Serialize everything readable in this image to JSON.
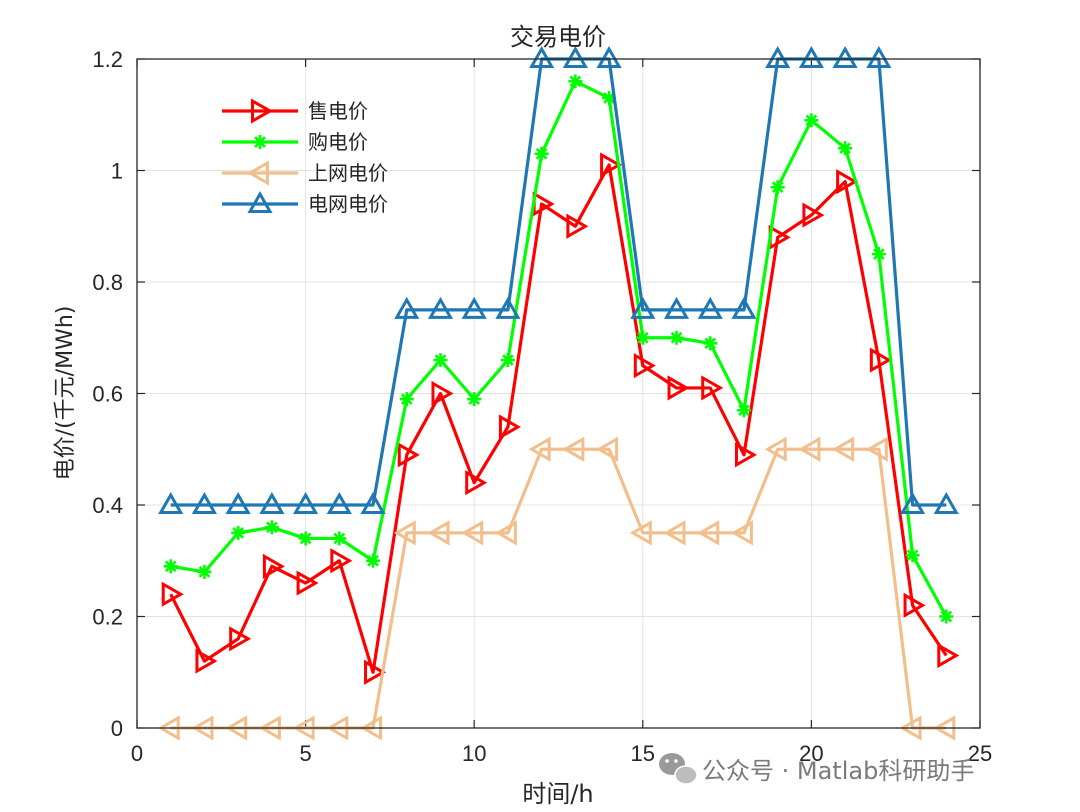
{
  "chart_data": {
    "type": "line",
    "title": "交易电价",
    "xlabel": "时间/h",
    "ylabel": "电价/(千元/MWh)",
    "xlim": [
      0,
      25
    ],
    "ylim": [
      0,
      1.2
    ],
    "xticks": [
      0,
      5,
      10,
      15,
      20,
      25
    ],
    "yticks": [
      0,
      0.2,
      0.4,
      0.6,
      0.8,
      1,
      1.2
    ],
    "xtick_labels": [
      "0",
      "5",
      "10",
      "15",
      "20",
      "25"
    ],
    "ytick_labels": [
      "0",
      "0.2",
      "0.4",
      "0.6",
      "0.8",
      "1",
      "1.2"
    ],
    "grid": true,
    "legend_position": "top-left",
    "x": [
      1,
      2,
      3,
      4,
      5,
      6,
      7,
      8,
      9,
      10,
      11,
      12,
      13,
      14,
      15,
      16,
      17,
      18,
      19,
      20,
      21,
      22,
      23,
      24
    ],
    "series": [
      {
        "name": "售电价",
        "color": "#ff0000",
        "marker": "triangle-right",
        "values": [
          0.24,
          0.12,
          0.16,
          0.29,
          0.26,
          0.3,
          0.1,
          0.49,
          0.6,
          0.44,
          0.54,
          0.94,
          0.9,
          1.01,
          0.65,
          0.61,
          0.61,
          0.49,
          0.88,
          0.92,
          0.98,
          0.66,
          0.22,
          0.13
        ]
      },
      {
        "name": "购电价",
        "color": "#00ff00",
        "marker": "asterisk",
        "values": [
          0.29,
          0.28,
          0.35,
          0.36,
          0.34,
          0.34,
          0.3,
          0.59,
          0.66,
          0.59,
          0.66,
          1.03,
          1.16,
          1.13,
          0.7,
          0.7,
          0.69,
          0.57,
          0.97,
          1.09,
          1.04,
          0.85,
          0.31,
          0.2
        ]
      },
      {
        "name": "上网电价",
        "color": "#f2bf8c",
        "marker": "triangle-left",
        "values": [
          0,
          0,
          0,
          0,
          0,
          0,
          0,
          0.35,
          0.35,
          0.35,
          0.35,
          0.5,
          0.5,
          0.5,
          0.35,
          0.35,
          0.35,
          0.35,
          0.5,
          0.5,
          0.5,
          0.5,
          0,
          0
        ]
      },
      {
        "name": "电网电价",
        "color": "#1f77b4",
        "marker": "triangle-up",
        "values": [
          0.4,
          0.4,
          0.4,
          0.4,
          0.4,
          0.4,
          0.4,
          0.75,
          0.75,
          0.75,
          0.75,
          1.2,
          1.2,
          1.2,
          0.75,
          0.75,
          0.75,
          0.75,
          1.2,
          1.2,
          1.2,
          1.2,
          0.4,
          0.4
        ]
      }
    ]
  },
  "watermark": "公众号 · Matlab科研助手"
}
